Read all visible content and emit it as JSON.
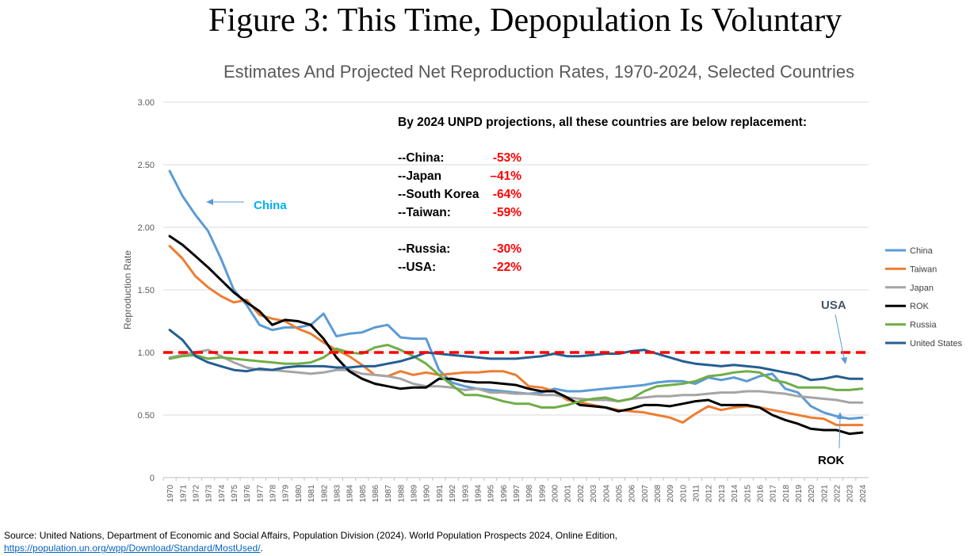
{
  "figure": {
    "title": "Figure 3: This Time, Depopulation Is Voluntary",
    "subtitle": "Estimates And Projected Net Reproduction Rates, 1970-2024, Selected Countries"
  },
  "chart_data": {
    "type": "line",
    "ylabel": "Reproduction Rate",
    "xlabel": "",
    "ylim": [
      0,
      3
    ],
    "y_ticks": [
      "0",
      "0.50",
      "1.00",
      "1.50",
      "2.00",
      "2.50",
      "3.00"
    ],
    "grid": "horizontal",
    "legend_position": "right",
    "reference_line": {
      "y": 1.0,
      "style": "dashed",
      "color": "#ff0000"
    },
    "x": [
      1970,
      1971,
      1972,
      1973,
      1974,
      1975,
      1976,
      1977,
      1978,
      1979,
      1980,
      1981,
      1982,
      1983,
      1984,
      1985,
      1986,
      1987,
      1988,
      1989,
      1990,
      1991,
      1992,
      1993,
      1994,
      1995,
      1996,
      1997,
      1998,
      1999,
      2000,
      2001,
      2002,
      2003,
      2004,
      2005,
      2006,
      2007,
      2008,
      2009,
      2010,
      2011,
      2012,
      2013,
      2014,
      2015,
      2016,
      2017,
      2018,
      2019,
      2020,
      2021,
      2022,
      2023,
      2024
    ],
    "series": [
      {
        "name": "China",
        "color": "#5b9bd5",
        "values": [
          2.45,
          2.25,
          2.1,
          1.97,
          1.75,
          1.5,
          1.38,
          1.22,
          1.18,
          1.2,
          1.2,
          1.22,
          1.31,
          1.13,
          1.15,
          1.16,
          1.2,
          1.22,
          1.12,
          1.11,
          1.11,
          0.86,
          0.76,
          0.73,
          0.71,
          0.7,
          0.69,
          0.68,
          0.67,
          0.68,
          0.71,
          0.69,
          0.69,
          0.7,
          0.71,
          0.72,
          0.73,
          0.74,
          0.76,
          0.77,
          0.77,
          0.75,
          0.8,
          0.78,
          0.8,
          0.77,
          0.81,
          0.83,
          0.71,
          0.68,
          0.57,
          0.52,
          0.49,
          0.47,
          0.48
        ]
      },
      {
        "name": "Taiwan",
        "color": "#ed7d31",
        "values": [
          1.85,
          1.75,
          1.61,
          1.52,
          1.45,
          1.4,
          1.42,
          1.3,
          1.27,
          1.25,
          1.19,
          1.15,
          1.08,
          1.02,
          0.97,
          0.9,
          0.82,
          0.81,
          0.85,
          0.82,
          0.84,
          0.82,
          0.83,
          0.84,
          0.84,
          0.85,
          0.85,
          0.82,
          0.73,
          0.72,
          0.69,
          0.62,
          0.6,
          0.58,
          0.56,
          0.54,
          0.53,
          0.52,
          0.5,
          0.48,
          0.44,
          0.51,
          0.57,
          0.54,
          0.56,
          0.57,
          0.56,
          0.54,
          0.52,
          0.5,
          0.48,
          0.47,
          0.42,
          0.42,
          0.42
        ]
      },
      {
        "name": "Japan",
        "color": "#a5a5a5",
        "values": [
          0.96,
          0.98,
          1.0,
          1.02,
          0.97,
          0.92,
          0.88,
          0.86,
          0.86,
          0.85,
          0.84,
          0.83,
          0.84,
          0.86,
          0.86,
          0.83,
          0.82,
          0.81,
          0.79,
          0.75,
          0.73,
          0.73,
          0.72,
          0.7,
          0.71,
          0.68,
          0.68,
          0.67,
          0.67,
          0.66,
          0.66,
          0.64,
          0.63,
          0.62,
          0.62,
          0.61,
          0.63,
          0.64,
          0.65,
          0.65,
          0.66,
          0.66,
          0.67,
          0.68,
          0.68,
          0.69,
          0.69,
          0.68,
          0.67,
          0.65,
          0.64,
          0.63,
          0.62,
          0.6,
          0.6
        ]
      },
      {
        "name": "ROK",
        "color": "#000000",
        "values": [
          1.93,
          1.86,
          1.77,
          1.68,
          1.58,
          1.48,
          1.4,
          1.33,
          1.22,
          1.26,
          1.25,
          1.22,
          1.11,
          0.96,
          0.85,
          0.79,
          0.75,
          0.73,
          0.71,
          0.72,
          0.72,
          0.79,
          0.79,
          0.77,
          0.76,
          0.76,
          0.75,
          0.74,
          0.71,
          0.69,
          0.69,
          0.64,
          0.58,
          0.57,
          0.56,
          0.53,
          0.55,
          0.58,
          0.58,
          0.57,
          0.59,
          0.61,
          0.62,
          0.58,
          0.58,
          0.58,
          0.56,
          0.5,
          0.46,
          0.43,
          0.39,
          0.38,
          0.38,
          0.35,
          0.36
        ]
      },
      {
        "name": "Russia",
        "color": "#70ad47",
        "values": [
          0.95,
          0.97,
          0.98,
          0.95,
          0.96,
          0.95,
          0.94,
          0.93,
          0.92,
          0.91,
          0.91,
          0.92,
          0.96,
          1.03,
          1.0,
          0.99,
          1.04,
          1.06,
          1.02,
          0.97,
          0.91,
          0.82,
          0.74,
          0.66,
          0.66,
          0.64,
          0.61,
          0.59,
          0.59,
          0.56,
          0.56,
          0.58,
          0.61,
          0.63,
          0.64,
          0.61,
          0.63,
          0.69,
          0.73,
          0.74,
          0.75,
          0.77,
          0.81,
          0.82,
          0.84,
          0.85,
          0.84,
          0.78,
          0.76,
          0.72,
          0.72,
          0.72,
          0.7,
          0.7,
          0.71
        ]
      },
      {
        "name": "United States",
        "color": "#255e91",
        "values": [
          1.18,
          1.1,
          0.97,
          0.92,
          0.89,
          0.86,
          0.85,
          0.87,
          0.86,
          0.88,
          0.89,
          0.89,
          0.89,
          0.88,
          0.88,
          0.89,
          0.89,
          0.91,
          0.93,
          0.96,
          1.0,
          0.99,
          0.98,
          0.97,
          0.96,
          0.95,
          0.95,
          0.95,
          0.96,
          0.97,
          0.99,
          0.97,
          0.97,
          0.98,
          0.99,
          0.99,
          1.01,
          1.02,
          0.99,
          0.96,
          0.93,
          0.91,
          0.9,
          0.89,
          0.9,
          0.89,
          0.88,
          0.86,
          0.84,
          0.82,
          0.78,
          0.79,
          0.81,
          0.79,
          0.79
        ]
      }
    ],
    "annotations": {
      "headline": "By 2024 UNPD projections, all these countries are below replacement:",
      "rows": [
        {
          "label": "--China:",
          "value": "-53%"
        },
        {
          "label": "--Japan",
          "value": "–41%"
        },
        {
          "label": "--South Korea",
          "value": "-64%"
        },
        {
          "label": "--Taiwan:",
          "value": "-59%"
        },
        {
          "label": "--Russia:",
          "value": "-30%"
        },
        {
          "label": "--USA:",
          "value": "-22%"
        }
      ],
      "value_color": "#ff0000",
      "callouts": [
        {
          "text": "China",
          "color": "#00b0f0"
        },
        {
          "text": "USA",
          "color": "#44546a"
        },
        {
          "text": "ROK",
          "color": "#000000"
        }
      ]
    }
  },
  "source": {
    "text": "Source: United Nations, Department of Economic and Social Affairs, Population Division (2024). World Population Prospects 2024, Online Edition,",
    "link_text": "https://population.un.org/wpp/Download/Standard/MostUsed/",
    "suffix": "."
  }
}
